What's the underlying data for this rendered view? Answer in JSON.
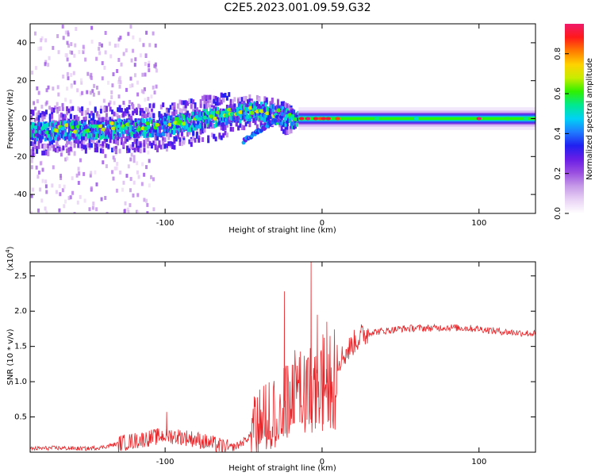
{
  "title": "C2E5.2023.001.09.59.G32",
  "chart_data": [
    {
      "type": "heatmap",
      "xlabel": "Height of straight line (km)",
      "ylabel": "Frequency (Hz)",
      "xlim": [
        -186,
        136
      ],
      "ylim": [
        -50,
        50
      ],
      "xticks": [
        -100,
        0,
        100
      ],
      "yticks": [
        -40,
        -20,
        0,
        20,
        40
      ],
      "colorbar": {
        "label": "Normalized spectral amplitude",
        "range": [
          0,
          0.95
        ],
        "ticks": [
          0.0,
          0.2,
          0.4,
          0.6,
          0.8
        ],
        "colormap": [
          "#ffffff",
          "#e9d3f5",
          "#c79be8",
          "#9b4fe0",
          "#6a1ee6",
          "#2020f0",
          "#1f7bff",
          "#00d2f5",
          "#00e890",
          "#2ff000",
          "#c8ec00",
          "#ffd200",
          "#ff7a00",
          "#ff1a1a",
          "#f01a6a"
        ]
      },
      "description_points": {
        "track_center_x": [
          -186,
          -150,
          -120,
          -100,
          -80,
          -60,
          -45,
          -35,
          -25,
          -15,
          -5,
          0,
          10,
          40,
          100,
          136
        ],
        "track_center_y": [
          -6,
          -5,
          -4,
          -3,
          0,
          3,
          5,
          4,
          2,
          0,
          -1,
          -2,
          0,
          0,
          0,
          0
        ]
      }
    },
    {
      "type": "line",
      "xlabel": "Height of straight line (km)",
      "ylabel": "SNR (10 * v/v)",
      "y_multiplier": "(x10⁴)",
      "xlim": [
        -186,
        136
      ],
      "ylim": [
        0,
        2.7
      ],
      "xticks": [
        -100,
        0,
        100
      ],
      "yticks": [
        0.5,
        1.0,
        1.5,
        2.0,
        2.5
      ],
      "color": "#e8262a",
      "x": [
        -186,
        -170,
        -150,
        -140,
        -130,
        -120,
        -110,
        -100,
        -90,
        -80,
        -70,
        -60,
        -55,
        -50,
        -45,
        -40,
        -35,
        -30,
        -25,
        -20,
        -15,
        -10,
        -5,
        0,
        5,
        10,
        15,
        20,
        25,
        30,
        40,
        50,
        60,
        70,
        80,
        90,
        100,
        110,
        120,
        136
      ],
      "values": [
        0.05,
        0.06,
        0.05,
        0.07,
        0.12,
        0.16,
        0.2,
        0.24,
        0.22,
        0.18,
        0.12,
        0.06,
        0.08,
        0.15,
        0.25,
        0.35,
        0.45,
        0.6,
        0.7,
        0.85,
        1.0,
        1.05,
        1.1,
        1.15,
        1.2,
        1.3,
        1.4,
        1.55,
        1.65,
        1.7,
        1.72,
        1.75,
        1.76,
        1.76,
        1.77,
        1.76,
        1.75,
        1.72,
        1.7,
        1.68
      ],
      "spikes": [
        {
          "x": -24,
          "y": 2.28
        },
        {
          "x": -7,
          "y": 2.7
        },
        {
          "x": -3,
          "y": 1.95
        },
        {
          "x": 3,
          "y": 1.85
        },
        {
          "x": 104,
          "y": 1.75
        },
        {
          "x": -99,
          "y": 0.57
        }
      ]
    }
  ]
}
